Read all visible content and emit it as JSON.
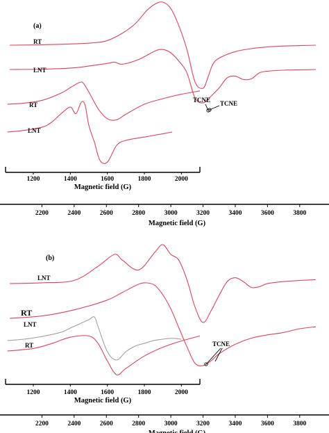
{
  "colors": {
    "curve": "#e0405a",
    "curve_gray": "#999999",
    "axis": "#000000"
  },
  "chart_data": [
    {
      "panel": "(a)",
      "type": "line",
      "title": "",
      "outer_axis": {
        "xlabel": "Magnetic field (G)",
        "xlim": [
          2000,
          3900
        ],
        "ticks": [
          2200,
          2400,
          2600,
          2800,
          3000,
          3200,
          3400,
          3600,
          3800
        ]
      },
      "inner_axis": {
        "xlabel": "Magnetic field (G)",
        "xlim": [
          1050,
          2100
        ],
        "ticks": [
          1200,
          1400,
          1600,
          1800,
          2000
        ]
      },
      "series": [
        {
          "name": "RT",
          "axis": "outer",
          "x": [
            2000,
            2200,
            2400,
            2500,
            2600,
            2700,
            2780,
            2850,
            2900,
            2950,
            3000,
            3050,
            3100,
            3150,
            3200,
            3230,
            3260,
            3300,
            3400,
            3500,
            3600,
            3700,
            3800,
            3900
          ],
          "y": [
            0,
            0.01,
            0.03,
            0.05,
            0.1,
            0.28,
            0.5,
            0.8,
            0.95,
            1.0,
            0.85,
            0.45,
            -0.1,
            -0.85,
            -1.0,
            -0.75,
            -0.45,
            -0.3,
            -0.15,
            -0.08,
            -0.04,
            -0.02,
            -0.01,
            0
          ]
        },
        {
          "name": "LNT",
          "axis": "outer",
          "x": [
            2000,
            2200,
            2400,
            2600,
            2650,
            2700,
            2800,
            2900,
            2950,
            3000,
            3050,
            3100,
            3150,
            3200,
            3250,
            3300,
            3350,
            3400,
            3450,
            3500,
            3550,
            3600,
            3700,
            3800,
            3900
          ],
          "y": [
            0,
            0.01,
            0.05,
            0.18,
            0.22,
            0.16,
            0.3,
            0.55,
            0.6,
            0.5,
            0.25,
            -0.1,
            -0.85,
            -1.0,
            -0.8,
            -0.55,
            -0.25,
            -0.2,
            -0.3,
            -0.28,
            -0.1,
            -0.05,
            -0.02,
            -0.01,
            0
          ]
        },
        {
          "name": "RT",
          "axis": "inner",
          "x": [
            1060,
            1150,
            1250,
            1350,
            1400,
            1450,
            1470,
            1500,
            1550,
            1600,
            1650,
            1700,
            1800,
            1900,
            2000,
            2100
          ],
          "y": [
            0,
            0.05,
            0.18,
            0.5,
            0.75,
            0.98,
            0.95,
            0.55,
            -0.2,
            -0.65,
            -0.7,
            -0.45,
            0.0,
            0.25,
            0.45,
            0.6
          ]
        },
        {
          "name": "LNT",
          "axis": "inner",
          "x": [
            1060,
            1150,
            1250,
            1300,
            1350,
            1400,
            1430,
            1460,
            1480,
            1500,
            1530,
            1560,
            1600,
            1650,
            1700,
            1800,
            1900,
            1950
          ],
          "y": [
            0,
            0.05,
            0.15,
            0.3,
            0.55,
            0.75,
            0.55,
            0.9,
            0.8,
            0.2,
            -0.3,
            -0.85,
            -0.9,
            -0.4,
            -0.25,
            -0.15,
            -0.05,
            0
          ]
        }
      ],
      "annotations": [
        "TCNE",
        "TCNE"
      ]
    },
    {
      "panel": "(b)",
      "type": "line",
      "title": "",
      "outer_axis": {
        "xlabel": "Magnetic field (G)",
        "xlim": [
          2000,
          3900
        ],
        "ticks": [
          2200,
          2400,
          2600,
          2800,
          3000,
          3200,
          3400,
          3600,
          3800
        ]
      },
      "inner_axis": {
        "xlabel": "Magnetic field (G)",
        "xlim": [
          1050,
          2100
        ],
        "ticks": [
          1200,
          1400,
          1600,
          1800,
          2000
        ]
      },
      "series": [
        {
          "name": "LNT",
          "axis": "outer",
          "x": [
            2000,
            2200,
            2400,
            2550,
            2650,
            2700,
            2800,
            2900,
            2950,
            3000,
            3050,
            3100,
            3150,
            3200,
            3250,
            3300,
            3350,
            3400,
            3450,
            3500,
            3550,
            3600,
            3700,
            3800,
            3900
          ],
          "y": [
            0,
            0.02,
            0.08,
            0.45,
            0.75,
            0.6,
            0.35,
            0.8,
            1.0,
            0.75,
            0.6,
            0.1,
            -0.6,
            -1.0,
            -0.7,
            -0.3,
            0.05,
            0.15,
            0.05,
            -0.1,
            -0.08,
            0.0,
            0.05,
            0.08,
            0.1
          ]
        },
        {
          "name": "RT",
          "axis": "outer",
          "x": [
            2000,
            2200,
            2400,
            2600,
            2700,
            2800,
            2850,
            2900,
            2950,
            3000,
            3050,
            3100,
            3150,
            3200,
            3250,
            3300,
            3400,
            3500,
            3600,
            3700,
            3800,
            3900
          ],
          "y": [
            0,
            0.05,
            0.18,
            0.38,
            0.55,
            0.72,
            0.75,
            0.7,
            0.5,
            0.2,
            -0.2,
            -0.6,
            -0.95,
            -1.0,
            -0.9,
            -0.75,
            -0.55,
            -0.42,
            -0.35,
            -0.3,
            -0.22,
            -0.18
          ]
        },
        {
          "name": "LNT",
          "axis": "inner",
          "x": [
            1060,
            1150,
            1250,
            1350,
            1400,
            1450,
            1500,
            1530,
            1550,
            1600,
            1650,
            1700,
            1750,
            1800,
            1850,
            1900,
            1950,
            2000
          ],
          "y": [
            0,
            0.05,
            0.15,
            0.3,
            0.45,
            0.6,
            0.75,
            0.85,
            0.5,
            -0.4,
            -0.7,
            -0.4,
            -0.2,
            -0.1,
            0.0,
            0.05,
            0.08,
            0.05
          ]
        },
        {
          "name": "RT",
          "axis": "inner",
          "x": [
            1060,
            1200,
            1300,
            1400,
            1500,
            1550,
            1600,
            1650,
            1700,
            1800,
            1900,
            2000,
            2100
          ],
          "y": [
            0,
            0.1,
            0.3,
            0.55,
            0.6,
            0.3,
            -0.4,
            -0.95,
            -0.7,
            -0.2,
            0.15,
            0.4,
            0.6
          ]
        }
      ],
      "annotations": [
        "TCNE"
      ]
    }
  ]
}
